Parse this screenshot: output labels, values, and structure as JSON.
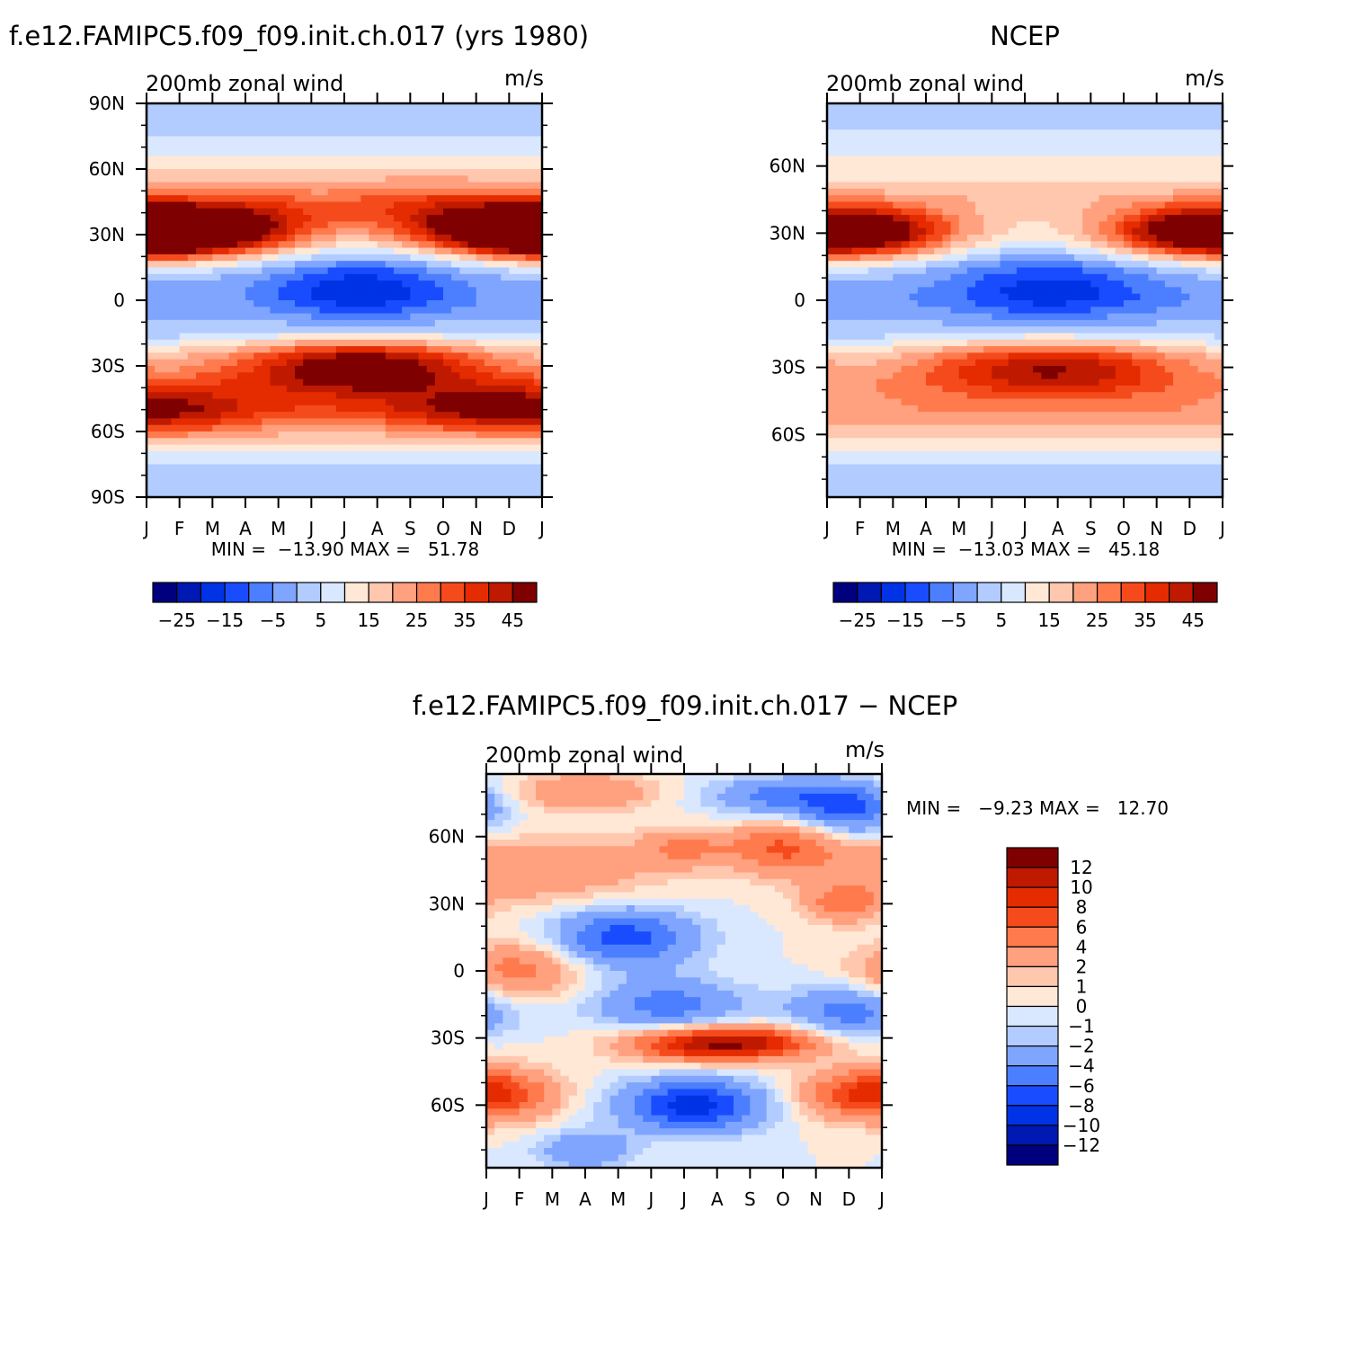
{
  "chart_data": [
    {
      "id": "model",
      "type": "heatmap",
      "title": "f.e12.FAMIPC5.f09_f09.init.ch.017 (yrs 1980)",
      "subtitle_left": "200mb zonal wind",
      "subtitle_right": "m/s",
      "x_ticks": [
        "J",
        "F",
        "M",
        "A",
        "M",
        "J",
        "J",
        "A",
        "S",
        "O",
        "N",
        "D",
        "J"
      ],
      "y_ticks": [
        "90N",
        "60N",
        "30N",
        "0",
        "30S",
        "60S",
        "90S"
      ],
      "y_tick_values": [
        90,
        60,
        30,
        0,
        -30,
        -60,
        -90
      ],
      "ylim": [
        -90,
        90
      ],
      "min_text": "MIN =  −13.90 MAX =   51.78",
      "min": -13.9,
      "max": 51.78,
      "colorbar_labels": [
        "−25",
        "−15",
        "−5",
        "5",
        "15",
        "25",
        "35",
        "45"
      ],
      "colorbar_orientation": "horizontal",
      "field": {
        "features": [
          {
            "lat": 31,
            "month": 0.5,
            "amp": 38,
            "wlat": 8,
            "wmon": 2.2
          },
          {
            "lat": 31,
            "month": 11.8,
            "amp": 40,
            "wlat": 8,
            "wmon": 2.2
          },
          {
            "lat": 35,
            "month": 3.5,
            "amp": 16,
            "wlat": 10,
            "wmon": 2.0
          },
          {
            "lat": 40,
            "month": 8.5,
            "amp": 15,
            "wlat": 10,
            "wmon": 2.0
          },
          {
            "lat": 5,
            "month": 6.5,
            "amp": -18,
            "wlat": 10,
            "wmon": 2.0
          },
          {
            "lat": -30,
            "month": 6.5,
            "amp": 34,
            "wlat": 9,
            "wmon": 2.5
          },
          {
            "lat": -50,
            "month": 1.0,
            "amp": 14,
            "wlat": 9,
            "wmon": 2.5
          },
          {
            "lat": -50,
            "month": 10.0,
            "amp": 16,
            "wlat": 8,
            "wmon": 2.5
          }
        ],
        "background_profile": [
          [
            90,
            2
          ],
          [
            75,
            4
          ],
          [
            60,
            14
          ],
          [
            45,
            20
          ],
          [
            31,
            10
          ],
          [
            15,
            0
          ],
          [
            0,
            -2
          ],
          [
            -15,
            2
          ],
          [
            -25,
            16
          ],
          [
            -38,
            24
          ],
          [
            -50,
            26
          ],
          [
            -62,
            16
          ],
          [
            -75,
            4
          ],
          [
            -90,
            2
          ]
        ]
      }
    },
    {
      "id": "ncep",
      "type": "heatmap",
      "title": "NCEP",
      "subtitle_left": "200mb zonal wind",
      "subtitle_right": "m/s",
      "x_ticks": [
        "J",
        "F",
        "M",
        "A",
        "M",
        "J",
        "J",
        "A",
        "S",
        "O",
        "N",
        "D",
        "J"
      ],
      "y_ticks": [
        "60N",
        "30N",
        "0",
        "30S",
        "60S"
      ],
      "y_tick_values": [
        60,
        30,
        0,
        -30,
        -60
      ],
      "ylim": [
        -88,
        88
      ],
      "min_text": "MIN =  −13.03 MAX =   45.18",
      "min": -13.03,
      "max": 45.18,
      "colorbar_labels": [
        "−25",
        "−15",
        "−5",
        "5",
        "15",
        "25",
        "35",
        "45"
      ],
      "colorbar_orientation": "horizontal",
      "field": {
        "features": [
          {
            "lat": 30,
            "month": 0.5,
            "amp": 32,
            "wlat": 8,
            "wmon": 2.4
          },
          {
            "lat": 30,
            "month": 11.8,
            "amp": 30,
            "wlat": 8,
            "wmon": 2.2
          },
          {
            "lat": 5,
            "month": 6.8,
            "amp": -16,
            "wlat": 10,
            "wmon": 2.2
          },
          {
            "lat": -30,
            "month": 6.8,
            "amp": 28,
            "wlat": 9,
            "wmon": 2.8
          }
        ],
        "background_profile": [
          [
            90,
            2
          ],
          [
            75,
            5
          ],
          [
            60,
            12
          ],
          [
            45,
            18
          ],
          [
            30,
            10
          ],
          [
            15,
            0
          ],
          [
            0,
            -3
          ],
          [
            -15,
            2
          ],
          [
            -25,
            14
          ],
          [
            -38,
            22
          ],
          [
            -50,
            24
          ],
          [
            -62,
            14
          ],
          [
            -75,
            4
          ],
          [
            -90,
            2
          ]
        ]
      }
    },
    {
      "id": "diff",
      "type": "heatmap",
      "title": "f.e12.FAMIPC5.f09_f09.init.ch.017 − NCEP",
      "subtitle_left": "200mb zonal wind",
      "subtitle_right": "m/s",
      "x_ticks": [
        "J",
        "F",
        "M",
        "A",
        "M",
        "J",
        "J",
        "A",
        "S",
        "O",
        "N",
        "D",
        "J"
      ],
      "y_ticks": [
        "60N",
        "30N",
        "0",
        "30S",
        "60S"
      ],
      "y_tick_values": [
        60,
        30,
        0,
        -30,
        -60
      ],
      "ylim": [
        -88,
        88
      ],
      "min_text": "MIN =   −9.23 MAX =   12.70",
      "min": -9.23,
      "max": 12.7,
      "colorbar_labels": [
        "12",
        "10",
        "8",
        "6",
        "4",
        "2",
        "1",
        "0",
        "−1",
        "−2",
        "−4",
        "−6",
        "−8",
        "−10",
        "−12"
      ],
      "colorbar_orientation": "vertical",
      "field": {
        "features": [
          {
            "lat": 45,
            "month": 1.5,
            "amp": 4,
            "wlat": 10,
            "wmon": 2.5
          },
          {
            "lat": 55,
            "month": 9.0,
            "amp": 6,
            "wlat": 8,
            "wmon": 1.2
          },
          {
            "lat": 55,
            "month": 6.0,
            "amp": 4,
            "wlat": 6,
            "wmon": 1.0
          },
          {
            "lat": 30,
            "month": 10.8,
            "amp": 5,
            "wlat": 6,
            "wmon": 0.8
          },
          {
            "lat": 15,
            "month": 4.2,
            "amp": -7,
            "wlat": 9,
            "wmon": 1.5
          },
          {
            "lat": 72,
            "month": 11.0,
            "amp": -6,
            "wlat": 8,
            "wmon": 1.0
          },
          {
            "lat": 78,
            "month": 9.0,
            "amp": -5,
            "wlat": 6,
            "wmon": 1.5
          },
          {
            "lat": 0,
            "month": 1.0,
            "amp": 5,
            "wlat": 9,
            "wmon": 1.3
          },
          {
            "lat": -15,
            "month": 5.5,
            "amp": -5,
            "wlat": 8,
            "wmon": 1.6
          },
          {
            "lat": -18,
            "month": 11.0,
            "amp": -5,
            "wlat": 8,
            "wmon": 1.3
          },
          {
            "lat": -33,
            "month": 6.5,
            "amp": 10,
            "wlat": 5,
            "wmon": 1.6
          },
          {
            "lat": -32,
            "month": 8.5,
            "amp": 6,
            "wlat": 5,
            "wmon": 1.4
          },
          {
            "lat": -60,
            "month": 6.3,
            "amp": -9,
            "wlat": 8,
            "wmon": 1.5
          },
          {
            "lat": -55,
            "month": 11.5,
            "amp": 5,
            "wlat": 8,
            "wmon": 1.5
          },
          {
            "lat": -55,
            "month": 0.2,
            "amp": 5,
            "wlat": 8,
            "wmon": 1.3
          },
          {
            "lat": -80,
            "month": 3.0,
            "amp": -4,
            "wlat": 6,
            "wmon": 1.0
          },
          {
            "lat": 80,
            "month": 3.0,
            "amp": 4,
            "wlat": 6,
            "wmon": 1.5
          }
        ],
        "background_profile": [
          [
            90,
            0
          ],
          [
            -90,
            0
          ]
        ]
      }
    }
  ]
}
